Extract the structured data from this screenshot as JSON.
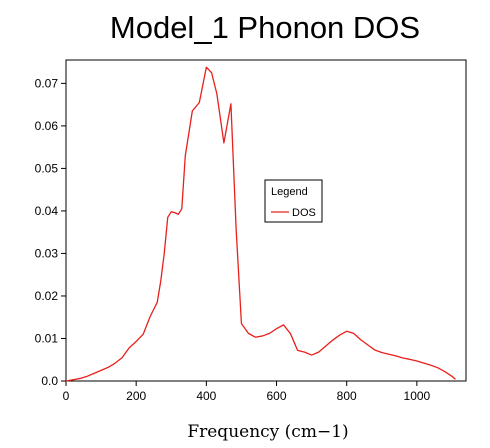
{
  "chart_data": {
    "type": "line",
    "title": "Model_1 Phonon DOS",
    "xlabel": "Frequency (cm−1)",
    "ylabel": "",
    "xlim": [
      0,
      1140
    ],
    "ylim": [
      0,
      0.0755
    ],
    "x_ticks": [
      0,
      200,
      400,
      600,
      800,
      1000
    ],
    "y_ticks": [
      0,
      0.01,
      0.02,
      0.03,
      0.04,
      0.05,
      0.06,
      0.07
    ],
    "y_tick_labels": [
      "0.0",
      "0.01",
      "0.02",
      "0.03",
      "0.04",
      "0.05",
      "0.06",
      "0.07"
    ],
    "grid": false,
    "legend": {
      "title": "Legend",
      "position": "center-right"
    },
    "series": [
      {
        "name": "DOS",
        "color": "#e8201c",
        "x": [
          0,
          20,
          40,
          60,
          80,
          100,
          120,
          140,
          160,
          180,
          200,
          220,
          240,
          260,
          270,
          280,
          290,
          300,
          310,
          320,
          330,
          340,
          360,
          380,
          400,
          415,
          430,
          450,
          470,
          485,
          500,
          520,
          540,
          560,
          580,
          600,
          620,
          640,
          660,
          680,
          700,
          720,
          740,
          760,
          780,
          800,
          820,
          840,
          860,
          880,
          900,
          920,
          940,
          960,
          980,
          1000,
          1020,
          1040,
          1060,
          1080,
          1100,
          1110
        ],
        "values": [
          0.0,
          0.0003,
          0.0006,
          0.0011,
          0.0018,
          0.0025,
          0.0032,
          0.0042,
          0.0055,
          0.0078,
          0.0093,
          0.011,
          0.0152,
          0.0185,
          0.0235,
          0.03,
          0.0385,
          0.0398,
          0.0396,
          0.0392,
          0.0405,
          0.053,
          0.0635,
          0.0655,
          0.0738,
          0.0725,
          0.0675,
          0.056,
          0.0652,
          0.0355,
          0.0135,
          0.0112,
          0.0103,
          0.0106,
          0.0112,
          0.0123,
          0.0132,
          0.0111,
          0.0072,
          0.0068,
          0.0061,
          0.0068,
          0.0082,
          0.0096,
          0.0108,
          0.0117,
          0.0112,
          0.0097,
          0.0085,
          0.0073,
          0.0067,
          0.0063,
          0.0059,
          0.0054,
          0.0051,
          0.0047,
          0.0042,
          0.0037,
          0.0031,
          0.0022,
          0.0011,
          0.0004
        ]
      }
    ]
  }
}
